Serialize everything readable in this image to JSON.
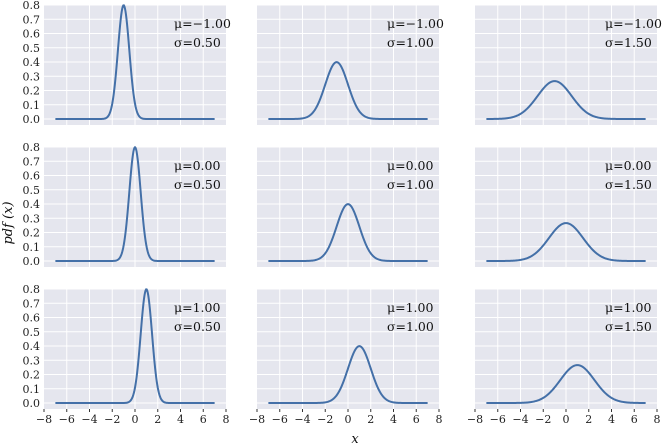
{
  "chart_data": {
    "type": "line",
    "layout": "3x3 small multiples",
    "series_color": "#4470a8",
    "panel_background": "#e5e6ee",
    "grid": true,
    "xlabel": "x",
    "ylabel": "pdf (x)",
    "xlim": [
      -8,
      8
    ],
    "ylim": [
      0,
      0.8
    ],
    "xticks": [
      -8,
      -6,
      -4,
      -2,
      0,
      2,
      4,
      6,
      8
    ],
    "xtick_labels": [
      "−8",
      "−6",
      "−4",
      "−2",
      "0",
      "2",
      "4",
      "6",
      "8"
    ],
    "yticks": [
      0.0,
      0.1,
      0.2,
      0.3,
      0.4,
      0.5,
      0.6,
      0.7,
      0.8
    ],
    "ytick_labels": [
      "0.0",
      "0.1",
      "0.2",
      "0.3",
      "0.4",
      "0.5",
      "0.6",
      "0.7",
      "0.8"
    ],
    "x_domain": [
      -7,
      7
    ],
    "panels": [
      {
        "row": 0,
        "col": 0,
        "mu": -1.0,
        "sigma": 0.5,
        "mu_label": "μ=−1.00",
        "sigma_label": "σ=0.50"
      },
      {
        "row": 0,
        "col": 1,
        "mu": -1.0,
        "sigma": 1.0,
        "mu_label": "μ=−1.00",
        "sigma_label": "σ=1.00"
      },
      {
        "row": 0,
        "col": 2,
        "mu": -1.0,
        "sigma": 1.5,
        "mu_label": "μ=−1.00",
        "sigma_label": "σ=1.50"
      },
      {
        "row": 1,
        "col": 0,
        "mu": 0.0,
        "sigma": 0.5,
        "mu_label": "μ=0.00",
        "sigma_label": "σ=0.50"
      },
      {
        "row": 1,
        "col": 1,
        "mu": 0.0,
        "sigma": 1.0,
        "mu_label": "μ=0.00",
        "sigma_label": "σ=1.00"
      },
      {
        "row": 1,
        "col": 2,
        "mu": 0.0,
        "sigma": 1.5,
        "mu_label": "μ=0.00",
        "sigma_label": "σ=1.50"
      },
      {
        "row": 2,
        "col": 0,
        "mu": 1.0,
        "sigma": 0.5,
        "mu_label": "μ=1.00",
        "sigma_label": "σ=0.50"
      },
      {
        "row": 2,
        "col": 1,
        "mu": 1.0,
        "sigma": 1.0,
        "mu_label": "μ=1.00",
        "sigma_label": "σ=1.00"
      },
      {
        "row": 2,
        "col": 2,
        "mu": 1.0,
        "sigma": 1.5,
        "mu_label": "μ=1.00",
        "sigma_label": "σ=1.50"
      }
    ]
  }
}
